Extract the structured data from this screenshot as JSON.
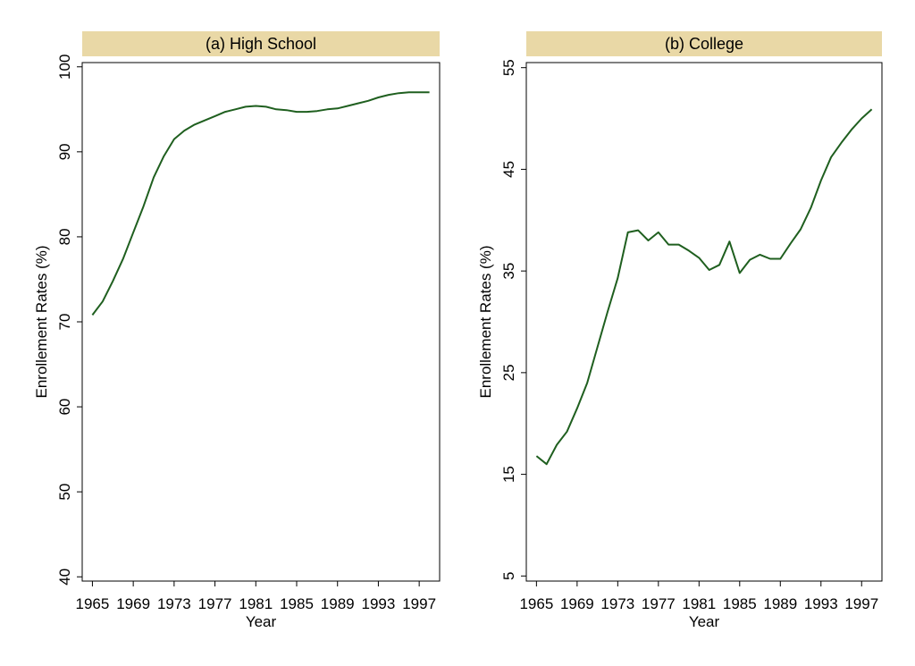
{
  "chart_data": [
    {
      "type": "line",
      "title": "(a) High School",
      "xlabel": "Year",
      "ylabel": "Enrollement Rates (%)",
      "xlim": [
        1964,
        1999
      ],
      "ylim": [
        39.5,
        100.5
      ],
      "xticks": [
        1965,
        1969,
        1973,
        1977,
        1981,
        1985,
        1989,
        1993,
        1997
      ],
      "xtick_labels": [
        "1965",
        "1969",
        "1973",
        "1977",
        "1981",
        "1985",
        "1989",
        "1993",
        "1997"
      ],
      "yticks": [
        40,
        50,
        60,
        70,
        80,
        90,
        100
      ],
      "ytick_labels": [
        "40",
        "50",
        "60",
        "70",
        "80",
        "90",
        "100"
      ],
      "title_bar_color": "#e9d8a6",
      "line_color": "#1f5f1f",
      "grid": false,
      "x": [
        1965,
        1966,
        1967,
        1968,
        1969,
        1970,
        1971,
        1972,
        1973,
        1974,
        1975,
        1976,
        1977,
        1978,
        1979,
        1980,
        1981,
        1982,
        1983,
        1984,
        1985,
        1986,
        1987,
        1988,
        1989,
        1990,
        1991,
        1992,
        1993,
        1994,
        1995,
        1996,
        1997,
        1998
      ],
      "y": [
        70.8,
        72.4,
        74.8,
        77.4,
        80.5,
        83.6,
        87.0,
        89.5,
        91.5,
        92.5,
        93.2,
        93.7,
        94.2,
        94.7,
        95.0,
        95.3,
        95.4,
        95.3,
        95.0,
        94.9,
        94.7,
        94.7,
        94.8,
        95.0,
        95.1,
        95.4,
        95.7,
        96.0,
        96.4,
        96.7,
        96.9,
        97.0,
        97.0,
        97.0
      ]
    },
    {
      "type": "line",
      "title": "(b) College",
      "xlabel": "Year",
      "ylabel": "Enrollement Rates (%)",
      "xlim": [
        1964,
        1999
      ],
      "ylim": [
        4.5,
        55.5
      ],
      "xticks": [
        1965,
        1969,
        1973,
        1977,
        1981,
        1985,
        1989,
        1993,
        1997
      ],
      "xtick_labels": [
        "1965",
        "1969",
        "1973",
        "1977",
        "1981",
        "1985",
        "1989",
        "1993",
        "1997"
      ],
      "yticks": [
        5,
        15,
        25,
        35,
        45,
        55
      ],
      "ytick_labels": [
        "5",
        "15",
        "25",
        "35",
        "45",
        "55"
      ],
      "title_bar_color": "#e9d8a6",
      "line_color": "#1f5f1f",
      "grid": false,
      "x": [
        1965,
        1966,
        1967,
        1968,
        1969,
        1970,
        1971,
        1972,
        1973,
        1974,
        1975,
        1976,
        1977,
        1978,
        1979,
        1980,
        1981,
        1982,
        1983,
        1984,
        1985,
        1986,
        1987,
        1988,
        1989,
        1990,
        1991,
        1992,
        1993,
        1994,
        1995,
        1996,
        1997,
        1998
      ],
      "y": [
        16.8,
        16.0,
        17.9,
        19.2,
        21.5,
        24.0,
        27.5,
        31.0,
        34.3,
        38.8,
        39.0,
        38.0,
        38.8,
        37.6,
        37.6,
        37.0,
        36.3,
        35.1,
        35.6,
        37.9,
        34.8,
        36.1,
        36.6,
        36.2,
        36.2,
        37.7,
        39.1,
        41.2,
        43.9,
        46.2,
        47.6,
        48.9,
        50.0,
        50.9
      ]
    }
  ]
}
